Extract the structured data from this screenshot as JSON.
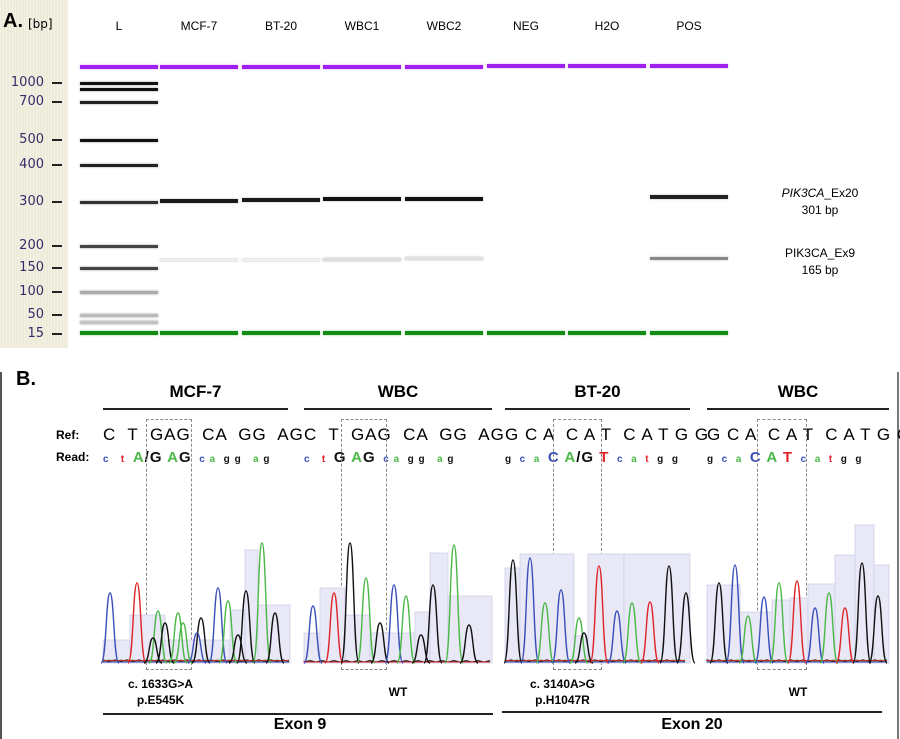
{
  "panel_a": {
    "label": "A.",
    "unit_label": "[bp]",
    "ladder_ticks": [
      "1000",
      "700",
      "500",
      "400",
      "300",
      "200",
      "150",
      "100",
      "50",
      "15"
    ],
    "lanes": [
      {
        "name": "L",
        "bands": [
          "1000",
          "900",
          "700",
          "500",
          "400",
          "300",
          "200",
          "150",
          "100",
          "50",
          "35"
        ]
      },
      {
        "name": "MCF-7",
        "bands": [
          "301",
          "165"
        ]
      },
      {
        "name": "BT-20",
        "bands": [
          "301",
          "165"
        ]
      },
      {
        "name": "WBC1",
        "bands": [
          "301",
          "165"
        ]
      },
      {
        "name": "WBC2",
        "bands": [
          "301",
          "165"
        ]
      },
      {
        "name": "NEG",
        "bands": []
      },
      {
        "name": "H2O",
        "bands": []
      },
      {
        "name": "POS",
        "bands": [
          "301",
          "165"
        ]
      }
    ],
    "marker_colors": {
      "upper": "#a020f0",
      "lower": "#138a13"
    },
    "annotations": [
      {
        "gene": "PIK3CA",
        "suffix": "_Ex20",
        "size": "301 bp",
        "italic": true
      },
      {
        "gene": "PIK3CA",
        "suffix": "_Ex9",
        "size": "165 bp",
        "italic": false
      }
    ]
  },
  "panel_b": {
    "label": "B.",
    "ref_label": "Ref:",
    "read_label": "Read:",
    "samples": [
      {
        "title": "MCF-7",
        "ref": "C  T  GAG  CA  GG  AG",
        "read_pre": "c   t",
        "read_box": "A/G AG",
        "read_post": "c a  g g   a g",
        "mutation_line1": "c. 1633G>A",
        "mutation_line2": "p.E545K"
      },
      {
        "title": "WBC",
        "ref": "C  T  GAG  CA  GG  AG",
        "read_pre": "c   t",
        "read_box": "G AG",
        "read_post": "c a  g g   a g",
        "mutation_line1": "WT",
        "mutation_line2": ""
      },
      {
        "title": "BT-20",
        "ref": "G C A  C A T  C A T G G",
        "read_pre": "g  c  a",
        "read_box": "C A/G T",
        "read_post": "c  a  t  g  g",
        "mutation_line1": "c. 3140A>G",
        "mutation_line2": "p.H1047R"
      },
      {
        "title": "WBC",
        "ref": "G C A  C A T  C A T G G",
        "read_pre": "g  c  a",
        "read_box": "C A T",
        "read_post": "c  a  t  g  g",
        "mutation_line1": "WT",
        "mutation_line2": ""
      }
    ],
    "exons": [
      "Exon 9",
      "Exon 20"
    ],
    "base_colors": {
      "A": "#4cb848",
      "C": "#3a4fb8",
      "G": "#111111",
      "T": "#e0242a"
    }
  }
}
